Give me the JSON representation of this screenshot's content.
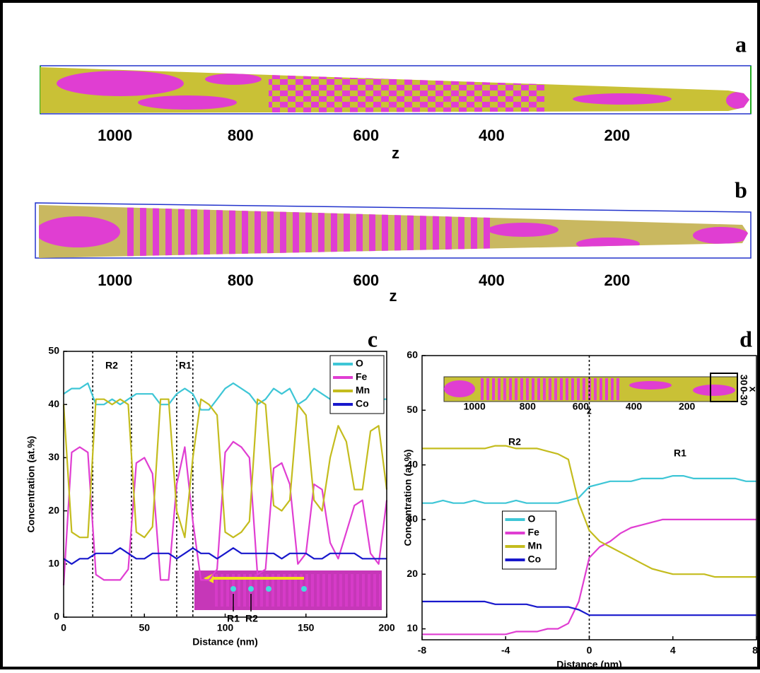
{
  "chart_data": [
    {
      "type": "reconstruction",
      "panel": "a",
      "xlabel": "z",
      "xlim": [
        1119,
        -13
      ],
      "xticks": [
        1000,
        800,
        600,
        400,
        200
      ]
    },
    {
      "type": "reconstruction",
      "panel": "b",
      "xlabel": "z",
      "xlim": [
        1127,
        -13
      ],
      "xticks": [
        1000,
        800,
        600,
        400,
        200
      ]
    },
    {
      "type": "line",
      "panel": "c",
      "xlabel": "Distance (nm)",
      "ylabel": "Concentration (at.%)",
      "xlim": [
        0,
        200
      ],
      "ylim": [
        0,
        50
      ],
      "xticks": [
        0,
        50,
        100,
        150,
        200
      ],
      "yticks": [
        0,
        10,
        20,
        30,
        40,
        50
      ],
      "legend": "upper right",
      "vlines": [
        18,
        42,
        70,
        80
      ],
      "annotations": [
        "R2",
        "R1"
      ],
      "inset": {
        "labels": [
          "R1",
          "R2"
        ]
      },
      "x": [
        0,
        5,
        10,
        15,
        20,
        25,
        30,
        35,
        40,
        45,
        50,
        55,
        60,
        65,
        70,
        75,
        80,
        85,
        90,
        95,
        100,
        105,
        110,
        115,
        120,
        125,
        130,
        135,
        140,
        145,
        150,
        155,
        160,
        165,
        170,
        175,
        180,
        185,
        190,
        195,
        200
      ],
      "series": [
        {
          "name": "O",
          "color": "#3ec6d6",
          "values": [
            42,
            43,
            43,
            44,
            40,
            40,
            41,
            40,
            41,
            42,
            42,
            42,
            40,
            40,
            42,
            43,
            42,
            39,
            39,
            41,
            43,
            44,
            43,
            42,
            40,
            41,
            43,
            42,
            43,
            40,
            41,
            43,
            42,
            41,
            40,
            41,
            42,
            42,
            40,
            41,
            41
          ]
        },
        {
          "name": "Fe",
          "color": "#e03ed2",
          "values": [
            6,
            31,
            32,
            31,
            8,
            7,
            7,
            7,
            9,
            29,
            30,
            27,
            7,
            7,
            25,
            32,
            18,
            7,
            7,
            9,
            31,
            33,
            32,
            30,
            8,
            9,
            28,
            29,
            25,
            10,
            12,
            25,
            24,
            14,
            11,
            16,
            21,
            22,
            12,
            10,
            22
          ]
        },
        {
          "name": "Mn",
          "color": "#c4bc1e",
          "values": [
            40,
            16,
            15,
            15,
            41,
            41,
            40,
            41,
            40,
            16,
            15,
            17,
            41,
            41,
            20,
            15,
            30,
            41,
            40,
            38,
            16,
            15,
            16,
            18,
            41,
            40,
            21,
            20,
            22,
            40,
            38,
            22,
            20,
            30,
            36,
            33,
            24,
            24,
            35,
            36,
            24
          ]
        },
        {
          "name": "Co",
          "color": "#1818cc",
          "values": [
            11,
            10,
            11,
            11,
            12,
            12,
            12,
            13,
            12,
            11,
            11,
            12,
            12,
            12,
            11,
            12,
            13,
            12,
            12,
            11,
            12,
            13,
            12,
            12,
            12,
            12,
            12,
            11,
            12,
            12,
            12,
            11,
            11,
            12,
            12,
            12,
            12,
            11,
            11,
            11,
            11
          ]
        }
      ]
    },
    {
      "type": "line",
      "panel": "d",
      "xlabel": "Distance (nm)",
      "ylabel": "Concentration (at.%)",
      "xlim": [
        -8,
        8
      ],
      "ylim": [
        8,
        60
      ],
      "xticks": [
        -8,
        -4,
        0,
        4,
        8
      ],
      "yticks": [
        10,
        20,
        30,
        40,
        50,
        60
      ],
      "legend": "center left",
      "vlines": [
        0
      ],
      "annotations": [
        "R2",
        "R1"
      ],
      "inset": {
        "xlabel": "z",
        "xlim": [
          1115,
          10
        ],
        "xticks": [
          1000,
          800,
          600,
          400,
          200
        ],
        "ylabel": "x",
        "ylim": [
          -40,
          40
        ],
        "yticks": [
          -30,
          0,
          30
        ]
      },
      "x": [
        -8,
        -7.5,
        -7,
        -6.5,
        -6,
        -5.5,
        -5,
        -4.5,
        -4,
        -3.5,
        -3,
        -2.5,
        -2,
        -1.5,
        -1,
        -0.5,
        0,
        0.5,
        1,
        1.5,
        2,
        2.5,
        3,
        3.5,
        4,
        4.5,
        5,
        5.5,
        6,
        6.5,
        7,
        7.5,
        8
      ],
      "series": [
        {
          "name": "O",
          "color": "#3ec6d6",
          "values": [
            33,
            33,
            33.5,
            33,
            33,
            33.5,
            33,
            33,
            33,
            33.5,
            33,
            33,
            33,
            33,
            33.5,
            34,
            36,
            36.5,
            37,
            37,
            37,
            37.5,
            37.5,
            37.5,
            38,
            38,
            37.5,
            37.5,
            37.5,
            37.5,
            37.5,
            37,
            37
          ]
        },
        {
          "name": "Fe",
          "color": "#e03ed2",
          "values": [
            9,
            9,
            9,
            9,
            9,
            9,
            9,
            9,
            9,
            9.5,
            9.5,
            9.5,
            10,
            10,
            11,
            15,
            23,
            25,
            26,
            27.5,
            28.5,
            29,
            29.5,
            30,
            30,
            30,
            30,
            30,
            30,
            30,
            30,
            30,
            30
          ]
        },
        {
          "name": "Mn",
          "color": "#c4bc1e",
          "values": [
            43,
            43,
            43,
            43,
            43,
            43,
            43,
            43.5,
            43.5,
            43,
            43,
            43,
            42.5,
            42,
            41,
            33,
            28,
            26,
            25,
            24,
            23,
            22,
            21,
            20.5,
            20,
            20,
            20,
            20,
            19.5,
            19.5,
            19.5,
            19.5,
            19.5
          ]
        },
        {
          "name": "Co",
          "color": "#1818cc",
          "values": [
            15,
            15,
            15,
            15,
            15,
            15,
            15,
            14.5,
            14.5,
            14.5,
            14.5,
            14,
            14,
            14,
            14,
            13.5,
            12.5,
            12.5,
            12.5,
            12.5,
            12.5,
            12.5,
            12.5,
            12.5,
            12.5,
            12.5,
            12.5,
            12.5,
            12.5,
            12.5,
            12.5,
            12.5,
            12.5
          ]
        }
      ]
    }
  ]
}
